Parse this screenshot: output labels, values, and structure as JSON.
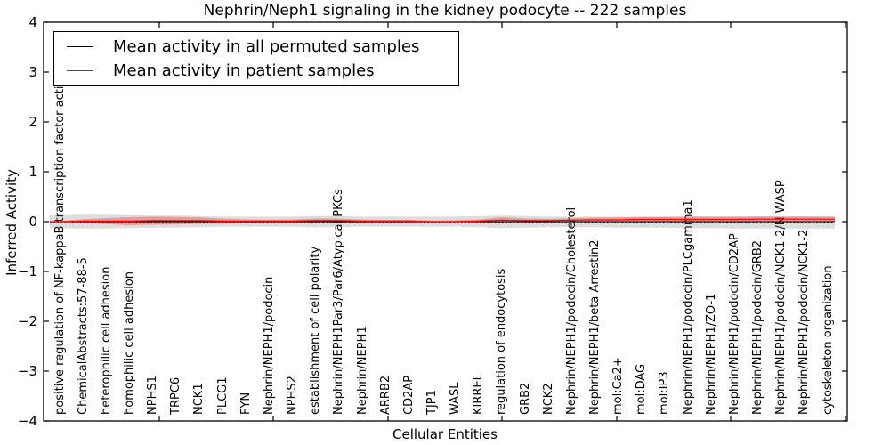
{
  "title": "Nephrin/Neph1 signaling in the kidney podocyte -- 222 samples",
  "axes": {
    "ylabel": "Inferred Activity",
    "xlabel": "Cellular Entities",
    "yticks": [
      4,
      3,
      2,
      1,
      0,
      -1,
      -2,
      -3,
      -4
    ],
    "ylim": [
      -4,
      4
    ]
  },
  "legend": {
    "items": [
      {
        "label": "Mean activity in all permuted samples",
        "color": "#000000"
      },
      {
        "label": "Mean activity in patient samples",
        "color": "#ff0000"
      }
    ]
  },
  "chart_data": {
    "type": "line",
    "title": "Nephrin/Neph1 signaling in the kidney podocyte -- 222 samples",
    "xlabel": "Cellular Entities",
    "ylabel": "Inferred Activity",
    "ylim": [
      -4,
      4
    ],
    "grid": false,
    "legend_position": "upper left",
    "categories": [
      "positive regulation of NF-kappaB transcription factor activity",
      "ChemicalAbstracts:57-88-5",
      "heterophilic cell adhesion",
      "homophilic cell adhesion",
      "NPHS1",
      "TRPC6",
      "NCK1",
      "PLCG1",
      "FYN",
      "Nephrin/NEPH1/podocin",
      "NPHS2",
      "establishment of cell polarity",
      "Nephrin/NEPH1Par3/Par6/Atypical PKCs",
      "Nephrin/NEPH1",
      "ARRB2",
      "CD2AP",
      "TJP1",
      "WASL",
      "KIRREL",
      "regulation of endocytosis",
      "GRB2",
      "NCK2",
      "Nephrin/NEPH1/podocin/Cholesterol",
      "Nephrin/NEPH1/beta Arrestin2",
      "mol:Ca2+",
      "mol:DAG",
      "mol:IP3",
      "Nephrin/NEPH1/podocin/PLCgamma1",
      "Nephrin/NEPH1/ZO-1",
      "Nephrin/NEPH1/podocin/CD2AP",
      "Nephrin/NEPH1/podocin/GRB2",
      "Nephrin/NEPH1/podocin/NCK1-2/N-WASP",
      "Nephrin/NEPH1/podocin/NCK1-2",
      "cytoskeleton organization"
    ],
    "series": [
      {
        "name": "Mean activity in all permuted samples",
        "color": "#000000",
        "values": [
          0,
          0,
          0,
          0,
          0,
          0,
          0,
          0,
          0,
          0,
          0,
          0,
          0,
          0,
          0,
          0,
          0,
          0,
          0,
          0,
          0,
          0,
          0,
          0,
          0,
          0,
          0,
          0,
          0,
          0,
          0,
          0,
          0,
          0
        ],
        "band_upper": [
          0.13,
          0.14,
          0.14,
          0.13,
          0.12,
          0.12,
          0.11,
          0.1,
          0.1,
          0.1,
          0.1,
          0.11,
          0.11,
          0.1,
          0.1,
          0.1,
          0.1,
          0.1,
          0.11,
          0.12,
          0.11,
          0.1,
          0.1,
          0.1,
          0.1,
          0.1,
          0.1,
          0.1,
          0.1,
          0.1,
          0.1,
          0.1,
          0.1,
          0.1
        ],
        "band_lower": [
          -0.13,
          -0.14,
          -0.14,
          -0.13,
          -0.12,
          -0.12,
          -0.11,
          -0.1,
          -0.1,
          -0.1,
          -0.1,
          -0.11,
          -0.11,
          -0.1,
          -0.1,
          -0.1,
          -0.1,
          -0.1,
          -0.11,
          -0.13,
          -0.12,
          -0.11,
          -0.11,
          -0.11,
          -0.12,
          -0.12,
          -0.12,
          -0.13,
          -0.13,
          -0.14,
          -0.14,
          -0.14,
          -0.14,
          -0.14
        ],
        "band_color": "rgba(120,120,120,0.25)"
      },
      {
        "name": "Mean activity in patient samples",
        "color": "#ff0000",
        "values": [
          0.0,
          0.01,
          0.01,
          0.01,
          0.02,
          0.02,
          0.02,
          0.01,
          0.01,
          0.01,
          0.01,
          0.02,
          0.02,
          0.01,
          0.01,
          0.01,
          0.0,
          0.0,
          0.01,
          0.03,
          0.02,
          0.02,
          0.03,
          0.035,
          0.035,
          0.045,
          0.045,
          0.045,
          0.045,
          0.045,
          0.05,
          0.05,
          0.05,
          0.05
        ],
        "band_upper": [
          0.012,
          0.05,
          0.07,
          0.09,
          0.1,
          0.095,
          0.085,
          0.06,
          0.045,
          0.04,
          0.045,
          0.065,
          0.06,
          0.04,
          0.035,
          0.035,
          0.025,
          0.03,
          0.045,
          0.09,
          0.065,
          0.055,
          0.07,
          0.08,
          0.085,
          0.095,
          0.095,
          0.1,
          0.1,
          0.1,
          0.105,
          0.105,
          0.105,
          0.1
        ],
        "band_lower": [
          -0.012,
          -0.03,
          -0.05,
          -0.07,
          -0.06,
          -0.055,
          -0.045,
          -0.04,
          -0.025,
          -0.02,
          -0.025,
          -0.025,
          -0.02,
          -0.02,
          -0.015,
          -0.015,
          -0.025,
          -0.03,
          -0.025,
          -0.03,
          -0.025,
          -0.015,
          -0.01,
          -0.01,
          -0.015,
          -0.005,
          -0.005,
          -0.01,
          -0.01,
          -0.01,
          -0.005,
          -0.005,
          -0.005,
          0.0
        ],
        "band_color": "rgba(255,0,0,0.30)"
      }
    ],
    "dotted_baseline": -0.018
  }
}
